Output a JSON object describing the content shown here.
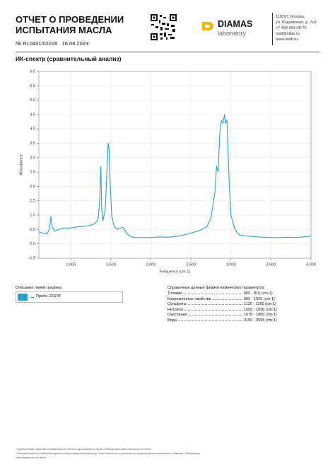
{
  "header": {
    "title_line1": "ОТЧЕТ О ПРОВЕДЕНИИ",
    "title_line2": "ИСПЫТАНИЯ МАСЛА",
    "number": "№ R10431/02226",
    "date": "16.06.2023",
    "logo_name": "DIAMAS",
    "logo_sub": "laboratory",
    "address": [
      "119297, Москва,",
      "ул. Родниковая, д. 7с4",
      "+7 499 553-08-70",
      "mail@oilab.ru",
      "www.oilab.ru"
    ]
  },
  "section_title": "ИК-спектр (сравнительный анализ)",
  "chart_data": {
    "type": "line",
    "x_label": "Frequency (cm-1)",
    "y_label": "Absorbance",
    "x": [
      600,
      650,
      700,
      730,
      750,
      770,
      800,
      850,
      900,
      1000,
      1100,
      1200,
      1250,
      1300,
      1340,
      1360,
      1375,
      1385,
      1400,
      1430,
      1450,
      1465,
      1475,
      1490,
      1510,
      1540,
      1580,
      1620,
      1650,
      1680,
      1700,
      1750,
      1800,
      1900,
      2000,
      2100,
      2200,
      2300,
      2400,
      2500,
      2600,
      2700,
      2750,
      2800,
      2820,
      2840,
      2860,
      2880,
      2900,
      2920,
      2930,
      2950,
      2960,
      2980,
      3000,
      3050,
      3100,
      3200,
      3300,
      3400,
      3500,
      3600,
      3700,
      3800,
      3900,
      4000
    ],
    "series": [
      {
        "name": "Проба '26378'",
        "color": "#2b9fd0",
        "values": [
          0.42,
          0.37,
          0.35,
          0.5,
          0.95,
          0.55,
          0.45,
          0.5,
          0.55,
          0.55,
          0.6,
          0.62,
          0.65,
          0.7,
          0.85,
          1.5,
          2.7,
          1.2,
          0.8,
          1.2,
          2.5,
          3.5,
          3.4,
          2.2,
          1.0,
          0.6,
          0.5,
          0.55,
          0.58,
          0.45,
          0.35,
          0.25,
          0.22,
          0.22,
          0.22,
          0.24,
          0.23,
          0.25,
          0.3,
          0.38,
          0.45,
          0.6,
          0.9,
          1.8,
          2.7,
          2.5,
          3.8,
          4.3,
          4.2,
          4.5,
          4.2,
          4.3,
          3.5,
          2.0,
          1.0,
          0.5,
          0.32,
          0.27,
          0.25,
          0.23,
          0.22,
          0.22,
          0.23,
          0.22,
          0.24,
          0.27
        ]
      }
    ],
    "xlim": [
      600,
      4000
    ],
    "ylim": [
      -0.5,
      6.0
    ],
    "xticks": [
      {
        "value": 1000,
        "label": "1,000"
      },
      {
        "value": 1500,
        "label": "1,500"
      },
      {
        "value": 2000,
        "label": "2,000"
      },
      {
        "value": 2500,
        "label": "2,500"
      },
      {
        "value": 3000,
        "label": "3,000"
      },
      {
        "value": 3500,
        "label": "3,500"
      },
      {
        "value": 4000,
        "label": "4,000"
      }
    ],
    "yticks": [
      {
        "value": -0.5,
        "label": "−0.5"
      },
      {
        "value": 0,
        "label": "0.0"
      },
      0.5,
      {
        "value": 1,
        "label": "1.0"
      },
      1.5,
      {
        "value": 2,
        "label": "2.0"
      },
      2.5,
      {
        "value": 3,
        "label": "3.0"
      },
      3.5,
      {
        "value": 4,
        "label": "4.0"
      },
      4.5,
      {
        "value": 5,
        "label": "5.0"
      },
      5.5,
      {
        "value": 6,
        "label": "6.0"
      }
    ],
    "grid": true
  },
  "legend_block": {
    "title": "Описание линий графика:"
  },
  "reference": {
    "title": "Справочные данные физико-химических параметров:",
    "rows": [
      [
        "Топливо",
        "805 - 815 (cm-1)"
      ],
      [
        "Коррозионные свойства",
        "960 - 1025 (cm-1)"
      ],
      [
        "Сульфаты",
        "1120 - 1180 (cm-1)"
      ],
      [
        "Нитриты",
        "1600 - 1650 (cm-1)"
      ],
      [
        "Окисление",
        "1670 - 1800 (cm-1)"
      ],
      [
        "Вода",
        "3150 - 3555 (cm-1)"
      ]
    ]
  },
  "footnotes": [
    "* Пробоотборка: Заказчик за правильность отбора и достоверность пробы Лаборатория ответственности не несет.",
    "* Интерпретация и соответствие данных носят справочный характер. Ответственность за решения по результатам испытаний несет Заказчик. Лаборатория",
    "ответственности не несет."
  ]
}
